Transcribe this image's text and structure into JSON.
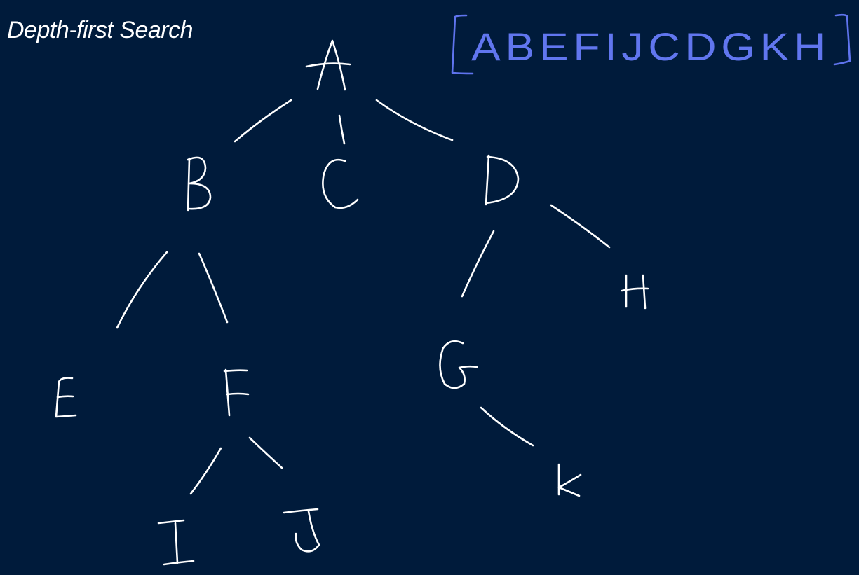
{
  "title": "Depth-first Search",
  "colors": {
    "background": "#001b3b",
    "ink": "#ffffff",
    "result_ink": "#5f74ee"
  },
  "tree": {
    "nodes": [
      "A",
      "B",
      "C",
      "D",
      "E",
      "F",
      "G",
      "H",
      "I",
      "J",
      "K"
    ],
    "edges": [
      [
        "A",
        "B"
      ],
      [
        "A",
        "C"
      ],
      [
        "A",
        "D"
      ],
      [
        "B",
        "E"
      ],
      [
        "B",
        "F"
      ],
      [
        "F",
        "I"
      ],
      [
        "F",
        "J"
      ],
      [
        "D",
        "G"
      ],
      [
        "D",
        "H"
      ],
      [
        "G",
        "K"
      ]
    ]
  },
  "traversal": {
    "order": "ABEFIJCDGKH",
    "nodes": [
      "A",
      "B",
      "E",
      "F",
      "I",
      "J",
      "C",
      "D",
      "G",
      "K",
      "H"
    ]
  }
}
